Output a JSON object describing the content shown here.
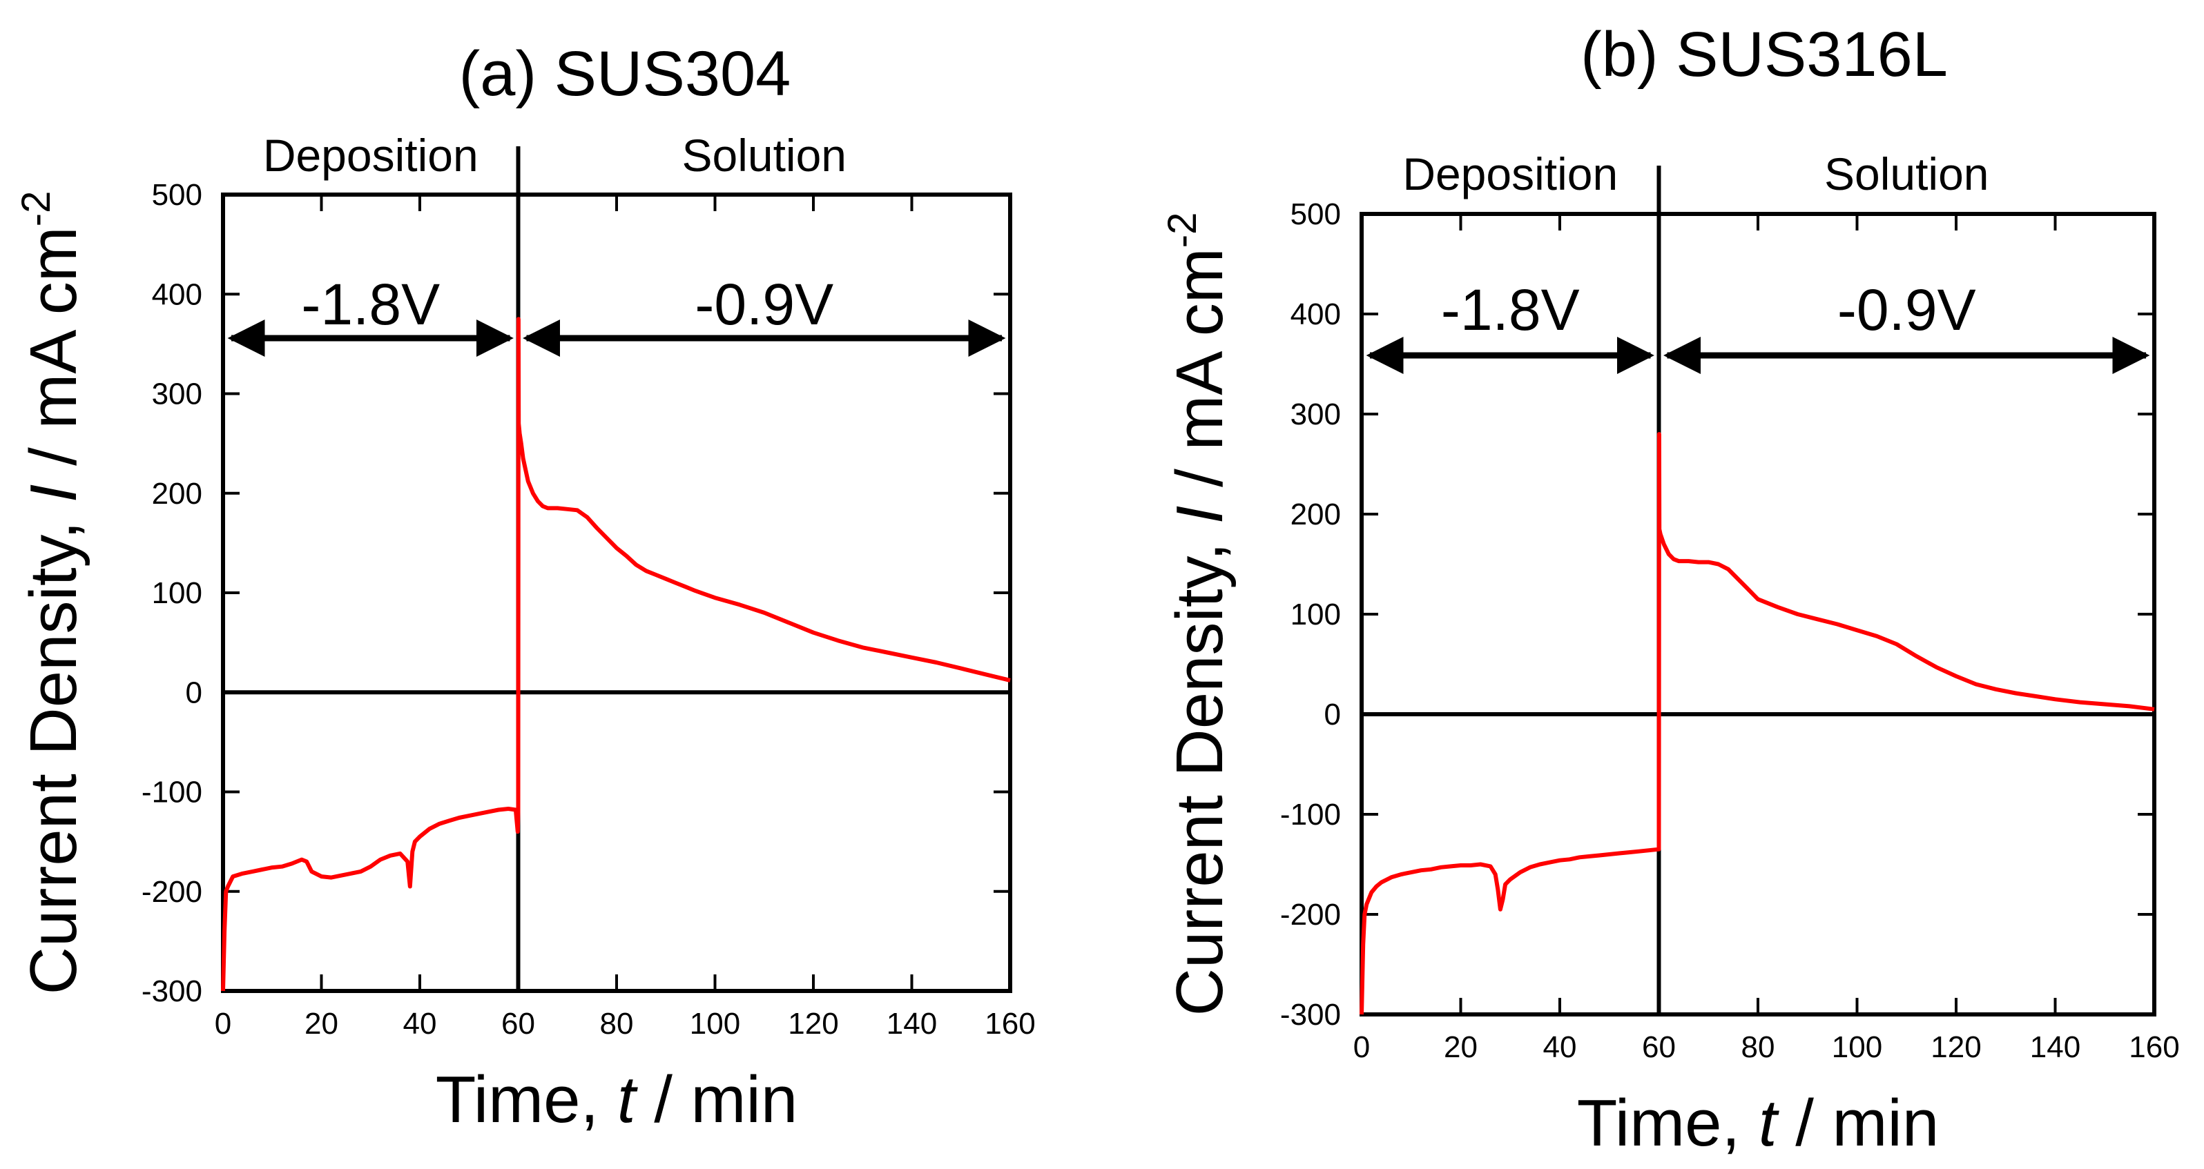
{
  "chart_data": [
    {
      "id": "a",
      "type": "line",
      "title": "(a) SUS304",
      "xlabel": {
        "prefix": "Time, ",
        "var": "t",
        "suffix": " / min"
      },
      "ylabel": {
        "prefix": "Current Density, ",
        "var": "I",
        "suffix": " / mA cm",
        "sup": "-2"
      },
      "xlim": [
        0,
        160
      ],
      "ylim": [
        -300,
        500
      ],
      "xticks": [
        0,
        20,
        40,
        60,
        80,
        100,
        120,
        140,
        160
      ],
      "yticks": [
        -300,
        -200,
        -100,
        0,
        100,
        200,
        300,
        400,
        500
      ],
      "regions": [
        {
          "label": "Deposition",
          "voltage": "-1.8V",
          "from": 0,
          "to": 60
        },
        {
          "label": "Solution",
          "voltage": "-0.9V",
          "from": 60,
          "to": 160
        }
      ],
      "series": [
        {
          "name": "SUS304",
          "color": "#ff0000",
          "x": [
            0,
            0.3,
            0.6,
            1,
            2,
            4,
            6,
            8,
            10,
            12,
            14,
            16,
            17,
            18,
            20,
            22,
            24,
            26,
            28,
            30,
            32,
            34,
            36,
            37.5,
            38,
            38.5,
            39,
            40,
            42,
            44,
            46,
            48,
            50,
            52,
            54,
            56,
            58,
            59.5,
            59.9,
            60,
            60.05,
            60.1,
            60.3,
            60.6,
            61,
            62,
            63,
            64,
            65,
            66,
            68,
            70,
            72,
            74,
            76,
            78,
            80,
            82,
            84,
            86,
            88,
            90,
            92,
            94,
            96,
            100,
            105,
            110,
            115,
            120,
            125,
            130,
            135,
            140,
            145,
            150,
            155,
            160
          ],
          "y": [
            -300,
            -240,
            -200,
            -195,
            -185,
            -182,
            -180,
            -178,
            -176,
            -175,
            -172,
            -168,
            -170,
            -180,
            -185,
            -186,
            -184,
            -182,
            -180,
            -175,
            -168,
            -164,
            -162,
            -170,
            -195,
            -160,
            -150,
            -145,
            -137,
            -132,
            -129,
            -126,
            -124,
            -122,
            -120,
            -118,
            -117,
            -118,
            -140,
            -120,
            375,
            270,
            260,
            250,
            235,
            212,
            200,
            192,
            187,
            185,
            185,
            184,
            183,
            176,
            165,
            155,
            145,
            137,
            128,
            122,
            118,
            114,
            110,
            106,
            102,
            95,
            88,
            80,
            70,
            60,
            52,
            45,
            40,
            35,
            30,
            24,
            18,
            12
          ]
        }
      ]
    },
    {
      "id": "b",
      "type": "line",
      "title": "(b) SUS316L",
      "xlabel": {
        "prefix": "Time, ",
        "var": "t",
        "suffix": " / min"
      },
      "ylabel": {
        "prefix": "Current Density, ",
        "var": "I",
        "suffix": " / mA cm",
        "sup": "-2"
      },
      "xlim": [
        0,
        160
      ],
      "ylim": [
        -300,
        500
      ],
      "xticks": [
        0,
        20,
        40,
        60,
        80,
        100,
        120,
        140,
        160
      ],
      "yticks": [
        -300,
        -200,
        -100,
        0,
        100,
        200,
        300,
        400,
        500
      ],
      "regions": [
        {
          "label": "Deposition",
          "voltage": "-1.8V",
          "from": 0,
          "to": 60
        },
        {
          "label": "Solution",
          "voltage": "-0.9V",
          "from": 60,
          "to": 160
        }
      ],
      "series": [
        {
          "name": "SUS316L",
          "color": "#ff0000",
          "x": [
            0,
            0.3,
            0.6,
            1,
            2,
            3,
            4,
            6,
            8,
            10,
            12,
            14,
            16,
            18,
            20,
            22,
            24,
            26,
            27,
            27.5,
            28,
            28.5,
            29,
            30,
            32,
            34,
            36,
            38,
            40,
            42,
            44,
            46,
            48,
            50,
            52,
            54,
            56,
            58,
            59.8,
            60,
            60.05,
            60.1,
            60.3,
            61,
            62,
            63,
            64,
            66,
            68,
            70,
            72,
            74,
            76,
            78,
            80,
            84,
            88,
            92,
            96,
            100,
            104,
            108,
            112,
            116,
            120,
            124,
            128,
            132,
            136,
            140,
            145,
            150,
            155,
            160
          ],
          "y": [
            -300,
            -230,
            -200,
            -190,
            -178,
            -172,
            -168,
            -163,
            -160,
            -158,
            -156,
            -155,
            -153,
            -152,
            -151,
            -151,
            -150,
            -152,
            -160,
            -175,
            -195,
            -185,
            -170,
            -165,
            -158,
            -153,
            -150,
            -148,
            -146,
            -145,
            -143,
            -142,
            -141,
            -140,
            -139,
            -138,
            -137,
            -136,
            -135,
            -135,
            280,
            185,
            180,
            170,
            160,
            155,
            153,
            153,
            152,
            152,
            150,
            145,
            135,
            125,
            115,
            107,
            100,
            95,
            90,
            84,
            78,
            70,
            58,
            47,
            38,
            30,
            25,
            21,
            18,
            15,
            12,
            10,
            8,
            5
          ]
        }
      ]
    }
  ]
}
